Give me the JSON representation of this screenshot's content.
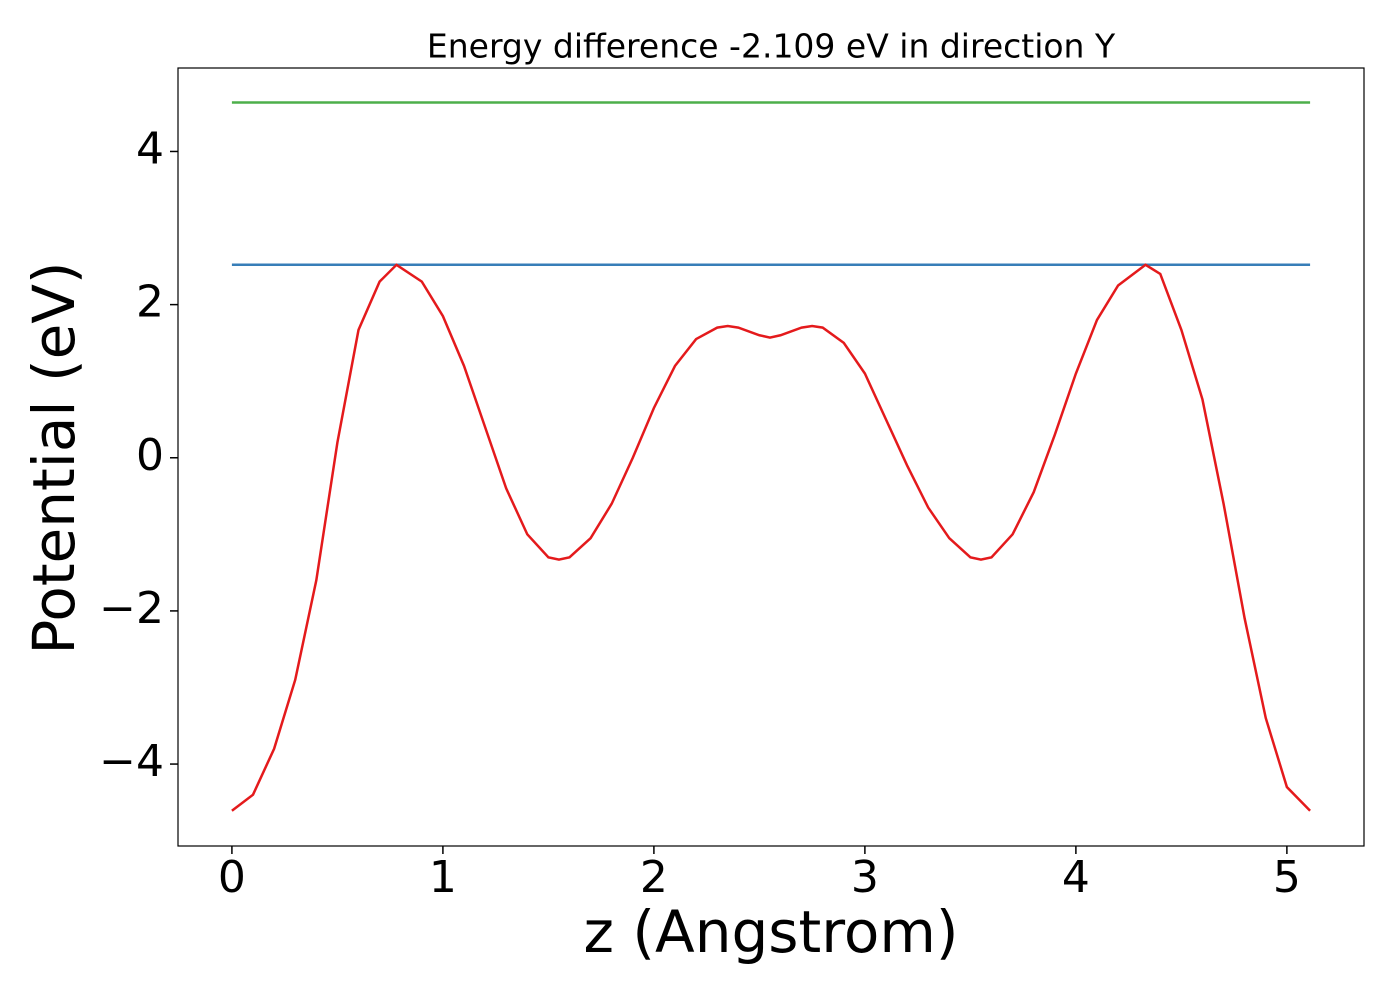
{
  "chart_data": {
    "type": "line",
    "title": "Energy difference -2.109 eV in direction Y",
    "xlabel": "z (Angstrom)",
    "ylabel": "Potential (eV)",
    "xlim": [
      -0.2555,
      5.3655
    ],
    "ylim": [
      -5.07,
      5.09
    ],
    "xticks": [
      0,
      1,
      2,
      3,
      4,
      5
    ],
    "yticks": [
      {
        "value": -4,
        "label": "−4"
      },
      {
        "value": -2,
        "label": "−2"
      },
      0,
      2,
      4
    ],
    "series": [
      {
        "color": "#4daf4a",
        "x": [
          0,
          5.11
        ],
        "values": [
          4.64,
          4.64
        ]
      },
      {
        "color": "#377eb8",
        "x": [
          0,
          5.11
        ],
        "values": [
          2.52,
          2.52
        ]
      },
      {
        "color": "#e41a1c",
        "x": [
          0,
          0.1,
          0.2,
          0.3,
          0.4,
          0.5,
          0.6,
          0.7,
          0.78,
          0.9,
          1.0,
          1.1,
          1.2,
          1.3,
          1.4,
          1.5,
          1.55,
          1.6,
          1.7,
          1.8,
          1.9,
          2.0,
          2.1,
          2.2,
          2.3,
          2.35,
          2.4,
          2.5,
          2.55,
          2.6,
          2.7,
          2.75,
          2.8,
          2.9,
          3.0,
          3.1,
          3.2,
          3.3,
          3.4,
          3.5,
          3.55,
          3.6,
          3.7,
          3.8,
          3.9,
          4.0,
          4.1,
          4.2,
          4.33,
          4.4,
          4.5,
          4.6,
          4.7,
          4.8,
          4.9,
          5.0,
          5.11
        ],
        "values": [
          -4.61,
          -4.4,
          -3.8,
          -2.9,
          -1.6,
          0.2,
          1.67,
          2.3,
          2.52,
          2.3,
          1.85,
          1.2,
          0.4,
          -0.4,
          -1.0,
          -1.3,
          -1.33,
          -1.3,
          -1.05,
          -0.6,
          0.0,
          0.65,
          1.2,
          1.55,
          1.7,
          1.72,
          1.7,
          1.6,
          1.57,
          1.6,
          1.7,
          1.72,
          1.7,
          1.5,
          1.1,
          0.5,
          -0.1,
          -0.65,
          -1.05,
          -1.3,
          -1.33,
          -1.3,
          -1.0,
          -0.45,
          0.3,
          1.1,
          1.8,
          2.25,
          2.52,
          2.4,
          1.67,
          0.76,
          -0.6,
          -2.1,
          -3.4,
          -4.3,
          -4.61
        ]
      }
    ]
  }
}
